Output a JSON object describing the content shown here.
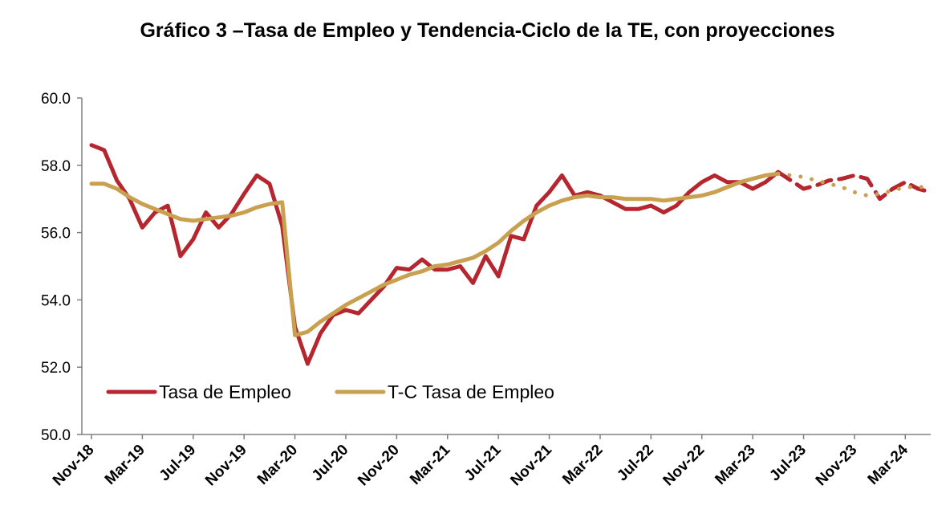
{
  "chart_data": {
    "type": "line",
    "title": "Gráfico 3 –Tasa de Empleo y Tendencia-Ciclo de la TE, con proyecciones",
    "xlabel": "",
    "ylabel": "",
    "ylim": [
      50.0,
      60.0
    ],
    "yticks": [
      "50.0",
      "52.0",
      "54.0",
      "56.0",
      "58.0",
      "60.0"
    ],
    "categories": [
      "Nov-18",
      "Dec-18",
      "Jan-19",
      "Feb-19",
      "Mar-19",
      "Apr-19",
      "May-19",
      "Jun-19",
      "Jul-19",
      "Aug-19",
      "Sep-19",
      "Oct-19",
      "Nov-19",
      "Dec-19",
      "Jan-20",
      "Feb-20",
      "Mar-20",
      "Apr-20",
      "May-20",
      "Jun-20",
      "Jul-20",
      "Aug-20",
      "Sep-20",
      "Oct-20",
      "Nov-20",
      "Dec-20",
      "Jan-21",
      "Feb-21",
      "Mar-21",
      "Apr-21",
      "May-21",
      "Jun-21",
      "Jul-21",
      "Aug-21",
      "Sep-21",
      "Oct-21",
      "Nov-21",
      "Dec-21",
      "Jan-22",
      "Feb-22",
      "Mar-22",
      "Apr-22",
      "May-22",
      "Jun-22",
      "Jul-22",
      "Aug-22",
      "Sep-22",
      "Oct-22",
      "Nov-22",
      "Dec-22",
      "Jan-23",
      "Feb-23",
      "Mar-23",
      "Apr-23",
      "May-23",
      "Jun-23",
      "Jul-23",
      "Aug-23",
      "Sep-23",
      "Oct-23",
      "Nov-23",
      "Dec-23",
      "Jan-24",
      "Feb-24",
      "Mar-24",
      "Apr-24",
      "May-24"
    ],
    "tick_labels": [
      "Nov-18",
      "Mar-19",
      "Jul-19",
      "Nov-19",
      "Mar-20",
      "Jul-20",
      "Nov-20",
      "Mar-21",
      "Jul-21",
      "Nov-21",
      "Mar-22",
      "Jul-22",
      "Nov-22",
      "Mar-23",
      "Jul-23",
      "Nov-23",
      "Mar-24"
    ],
    "projection_start": "May-23",
    "grid": false,
    "legend_position": "bottom-left",
    "series": [
      {
        "name": "Tasa de Empleo",
        "color": "#B5262E",
        "style_actual": "solid",
        "style_projection": "dashed",
        "values": [
          58.6,
          58.45,
          57.55,
          57.0,
          56.15,
          56.6,
          56.8,
          55.3,
          55.8,
          56.6,
          56.15,
          56.55,
          57.15,
          57.7,
          57.45,
          56.2,
          53.2,
          52.1,
          53.0,
          53.55,
          53.7,
          53.6,
          54.0,
          54.4,
          54.95,
          54.9,
          55.2,
          54.9,
          54.9,
          55.0,
          54.5,
          55.3,
          54.7,
          55.9,
          55.8,
          56.8,
          57.2,
          57.7,
          57.1,
          57.2,
          57.1,
          56.9,
          56.7,
          56.7,
          56.8,
          56.6,
          56.8,
          57.2,
          57.5,
          57.7,
          57.5,
          57.5,
          57.3,
          57.5,
          57.8,
          57.55,
          57.3,
          57.4,
          57.55,
          57.6,
          57.7,
          57.6,
          57.0,
          57.3,
          57.5,
          57.3,
          57.2
        ]
      },
      {
        "name": "T-C Tasa de Empleo",
        "color": "#C9A050",
        "style_actual": "solid",
        "style_projection": "dotted",
        "values": [
          57.45,
          57.45,
          57.3,
          57.05,
          56.85,
          56.7,
          56.55,
          56.4,
          56.35,
          56.4,
          56.45,
          56.5,
          56.6,
          56.75,
          56.85,
          56.9,
          52.95,
          53.05,
          53.35,
          53.6,
          53.85,
          54.05,
          54.25,
          54.45,
          54.6,
          54.75,
          54.85,
          55.0,
          55.05,
          55.15,
          55.25,
          55.45,
          55.7,
          56.05,
          56.35,
          56.6,
          56.8,
          56.95,
          57.05,
          57.1,
          57.05,
          57.05,
          57.0,
          57.0,
          57.0,
          56.95,
          57.0,
          57.05,
          57.1,
          57.2,
          57.35,
          57.5,
          57.6,
          57.7,
          57.75,
          57.7,
          57.65,
          57.55,
          57.45,
          57.35,
          57.2,
          57.1,
          57.15,
          57.25,
          57.35,
          57.35,
          57.35
        ]
      }
    ]
  }
}
